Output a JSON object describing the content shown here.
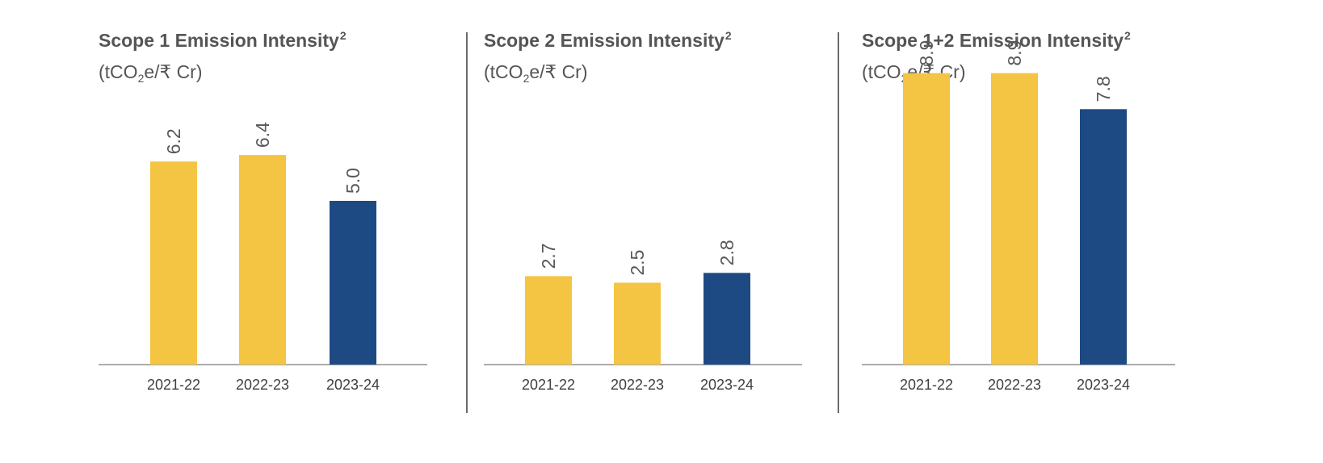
{
  "chart_data": [
    {
      "type": "bar",
      "title": "Scope 1 Emission Intensity",
      "title_superscript": "2",
      "unit_prefix": "(tCO",
      "unit_subscript": "2",
      "unit_suffix": "e/₹ Cr)",
      "categories": [
        "2021-22",
        "2022-23",
        "2023-24"
      ],
      "values": [
        6.2,
        6.4,
        5.0
      ],
      "value_labels": [
        "6.2",
        "6.4",
        "5.0"
      ],
      "bar_colors": [
        "#F4C443",
        "#F4C443",
        "#1E4A84"
      ],
      "ylim": [
        0,
        6.4
      ]
    },
    {
      "type": "bar",
      "title": "Scope 2 Emission Intensity",
      "title_superscript": "2",
      "unit_prefix": "(tCO",
      "unit_subscript": "2",
      "unit_suffix": "e/₹ Cr)",
      "categories": [
        "2021-22",
        "2022-23",
        "2023-24"
      ],
      "values": [
        2.7,
        2.5,
        2.8
      ],
      "value_labels": [
        "2.7",
        "2.5",
        "2.8"
      ],
      "bar_colors": [
        "#F4C443",
        "#F4C443",
        "#1E4A84"
      ],
      "ylim": [
        0,
        2.8
      ]
    },
    {
      "type": "bar",
      "title": "Scope 1+2 Emission Intensity",
      "title_superscript": "2",
      "unit_prefix": "(tCO",
      "unit_subscript": "2",
      "unit_suffix": "e/₹ Cr)",
      "categories": [
        "2021-22",
        "2022-23",
        "2023-24"
      ],
      "values": [
        8.9,
        8.9,
        7.8
      ],
      "value_labels": [
        "8.9",
        "8.9",
        "7.8"
      ],
      "bar_colors": [
        "#F4C443",
        "#F4C443",
        "#1E4A84"
      ],
      "ylim": [
        0,
        8.9
      ]
    }
  ],
  "colors": {
    "prior_years": "#F4C443",
    "current_year": "#1E4A84",
    "axis": "#7a7a7a",
    "divider": "#6b6b6b"
  }
}
